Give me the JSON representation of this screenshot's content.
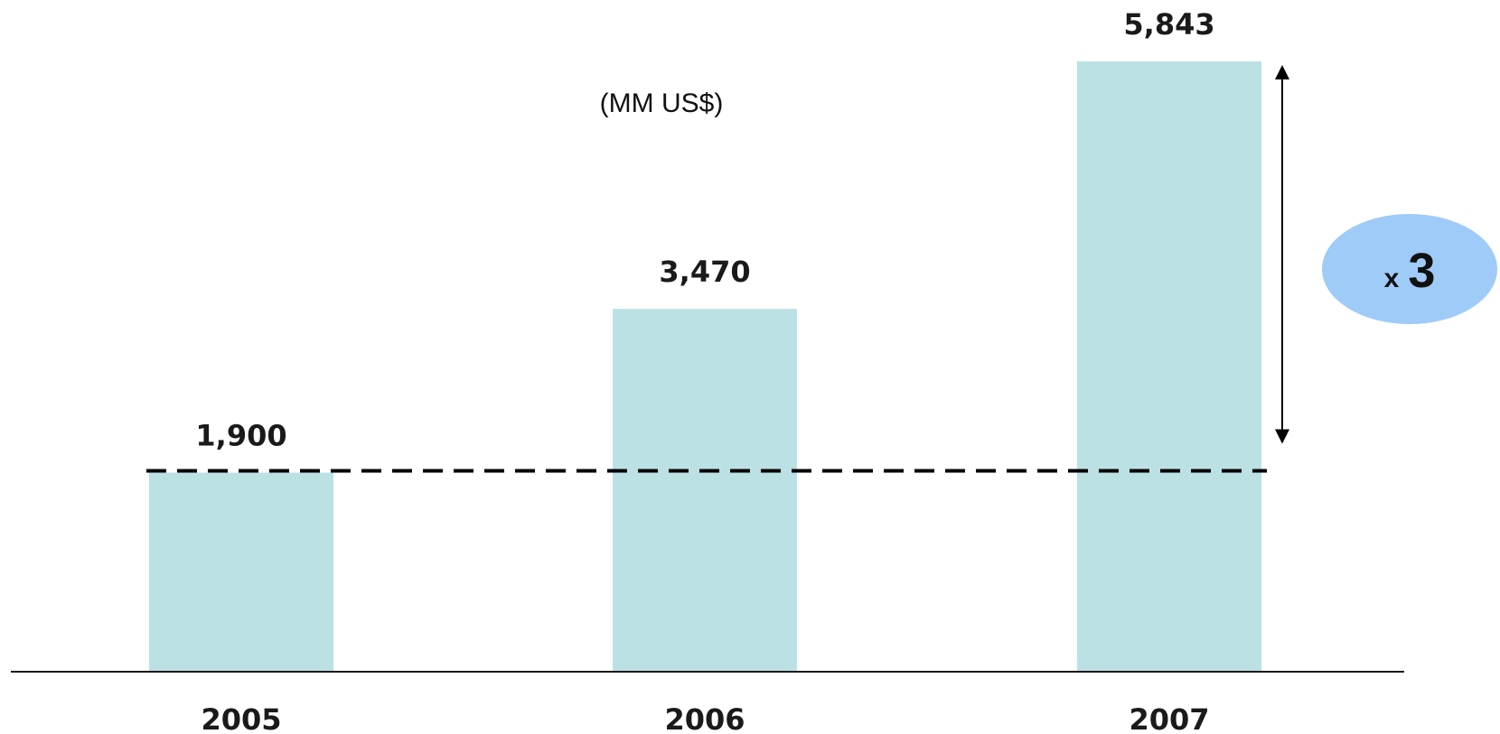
{
  "chart_data": {
    "type": "bar",
    "categories": [
      "2005",
      "2006",
      "2007"
    ],
    "values": [
      1900,
      3470,
      5843
    ],
    "value_labels": [
      "1,900",
      "3,470",
      "5,843"
    ],
    "unit_label": "(MM US$)",
    "ylim": [
      0,
      5843
    ],
    "grid": false,
    "legend": "none",
    "reference_line": {
      "value": 1900,
      "style": "dashed"
    },
    "growth_annotation": {
      "from": 1900,
      "to": 5843,
      "prefix": "x",
      "multiplier": "3"
    },
    "colors": {
      "bar": "#bce1e4",
      "axis": "#1a1a1a",
      "badge": "#9fcbf9",
      "text": "#111111"
    }
  }
}
